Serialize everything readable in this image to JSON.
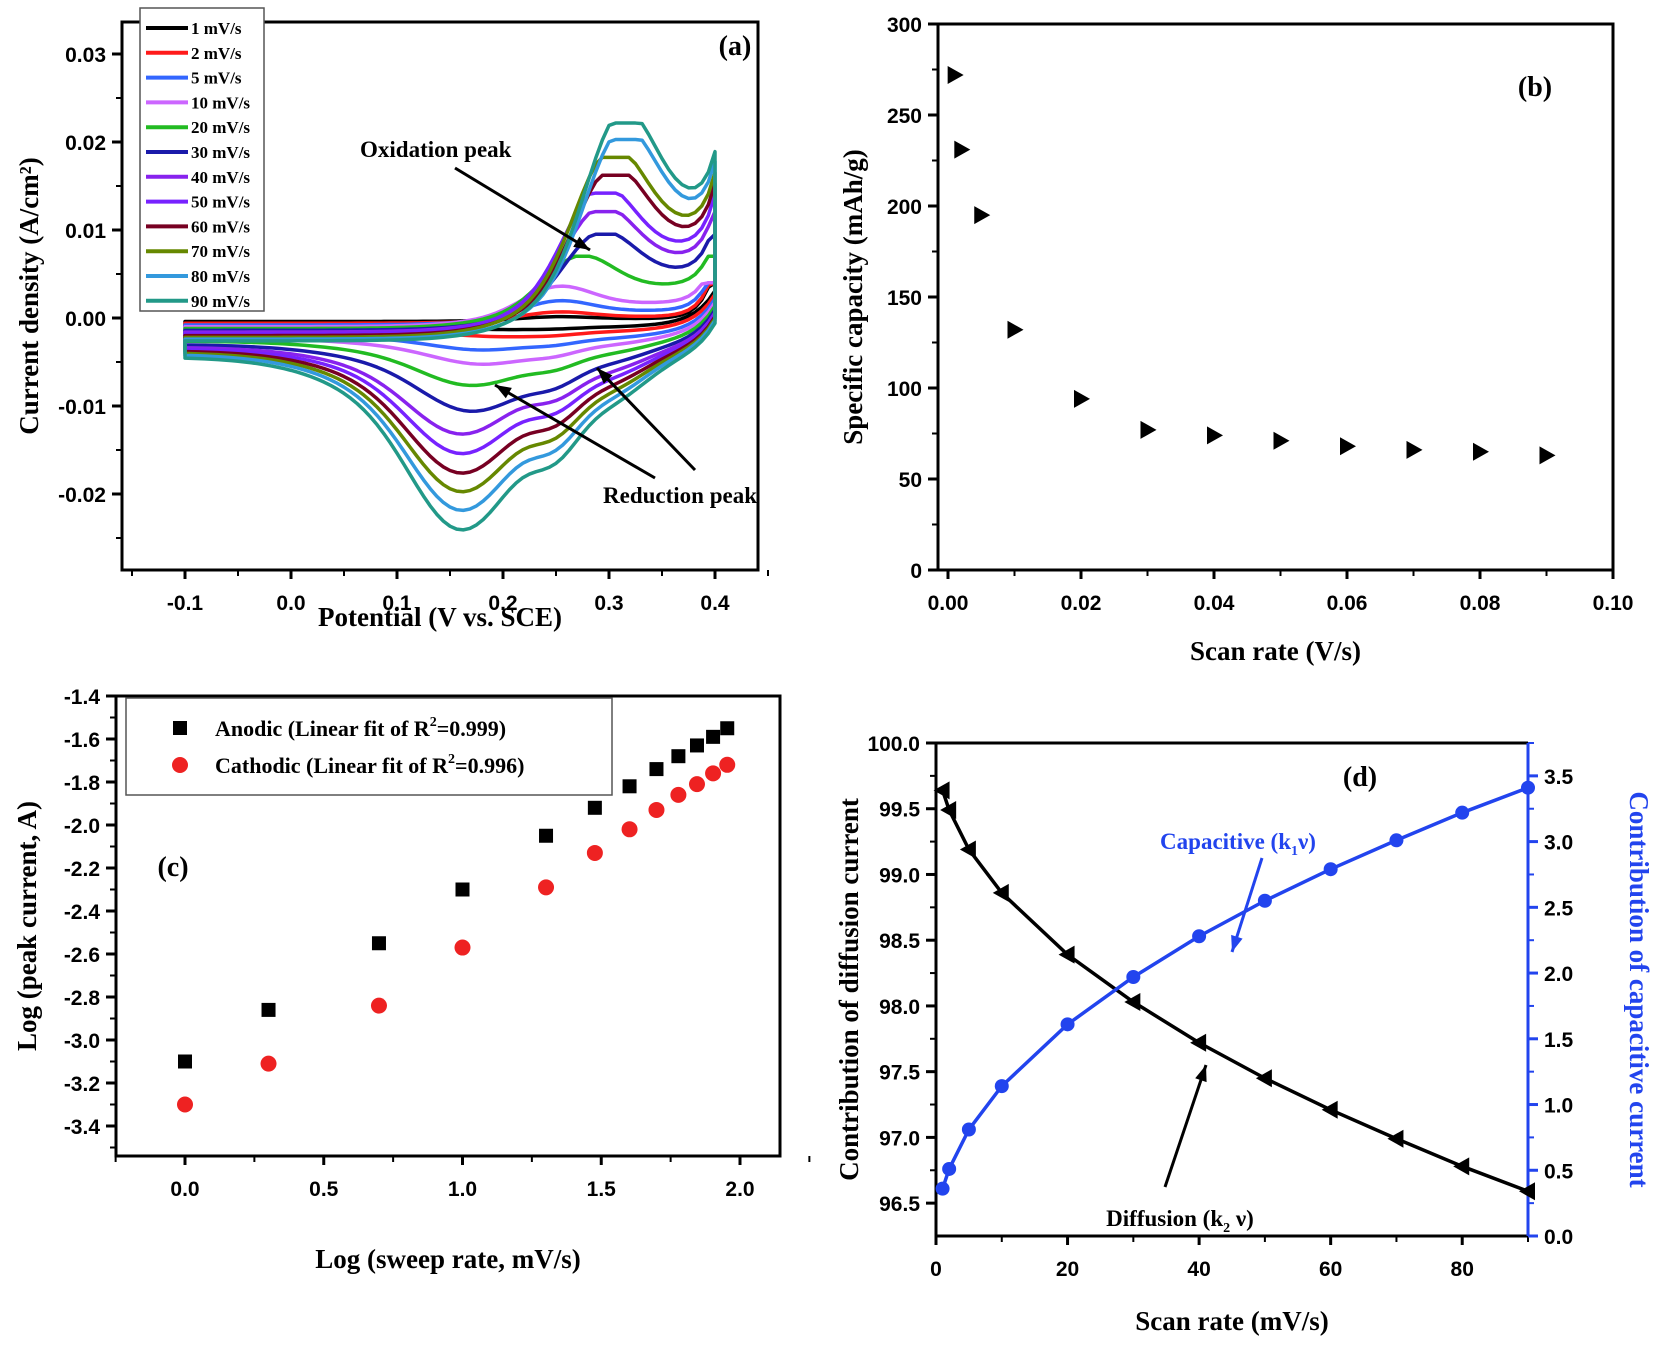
{
  "chart_data": [
    {
      "id": "a",
      "type": "line",
      "panel_label": "(a)",
      "title": "",
      "xlabel": "Potential (V vs. SCE)",
      "ylabel": "Current density (A/cm²)",
      "xlim": [
        -0.15,
        0.45
      ],
      "ylim": [
        -0.025,
        0.033
      ],
      "x_ticks": [
        "-0.1",
        "0.0",
        "0.1",
        "0.2",
        "0.3",
        "0.4"
      ],
      "x_tick_values": [
        -0.1,
        0.0,
        0.1,
        0.2,
        0.3,
        0.4
      ],
      "y_ticks": [
        "-0.02",
        "-0.01",
        "0.00",
        "0.01",
        "0.02",
        "0.03"
      ],
      "y_tick_values": [
        -0.02,
        -0.01,
        0.0,
        0.01,
        0.02,
        0.03
      ],
      "legend_position": "top-left",
      "annotations": [
        "Oxidation peak",
        "Reduction peak"
      ],
      "series": [
        {
          "name": "1 mV/s",
          "color": "#000000",
          "anodic_peak": [
            0.25,
            0.0006
          ],
          "cathodic_peak": [
            0.2,
            -0.0004
          ],
          "start_low": -0.0009,
          "start_high": -0.0004
        },
        {
          "name": "2 mV/s",
          "color": "#ff1a1a",
          "anodic_peak": [
            0.25,
            0.0014
          ],
          "cathodic_peak": [
            0.2,
            -0.0008
          ],
          "start_low": -0.0013,
          "start_high": -0.0006
        },
        {
          "name": "5 mV/s",
          "color": "#3366ff",
          "anodic_peak": [
            0.25,
            0.003
          ],
          "cathodic_peak": [
            0.18,
            -0.0018
          ],
          "start_low": -0.0018,
          "start_high": -0.0008
        },
        {
          "name": "10 mV/s",
          "color": "#cc66ff",
          "anodic_peak": [
            0.25,
            0.005
          ],
          "cathodic_peak": [
            0.18,
            -0.003
          ],
          "start_low": -0.0022,
          "start_high": -0.001
        },
        {
          "name": "20 mV/s",
          "color": "#22bb22",
          "anodic_peak": [
            0.27,
            0.009
          ],
          "cathodic_peak": [
            0.17,
            -0.005
          ],
          "start_low": -0.0026,
          "start_high": -0.0012
        },
        {
          "name": "30 mV/s",
          "color": "#1a1aaa",
          "anodic_peak": [
            0.29,
            0.0122
          ],
          "cathodic_peak": [
            0.17,
            -0.0075
          ],
          "start_low": -0.003,
          "start_high": -0.0014
        },
        {
          "name": "40 mV/s",
          "color": "#8822ee",
          "anodic_peak": [
            0.29,
            0.0155
          ],
          "cathodic_peak": [
            0.16,
            -0.0098
          ],
          "start_low": -0.0033,
          "start_high": -0.0016
        },
        {
          "name": "50 mV/s",
          "color": "#7722ff",
          "anodic_peak": [
            0.29,
            0.0182
          ],
          "cathodic_peak": [
            0.16,
            -0.0118
          ],
          "start_low": -0.0035,
          "start_high": -0.0018
        },
        {
          "name": "60 mV/s",
          "color": "#770022",
          "anodic_peak": [
            0.3,
            0.0208
          ],
          "cathodic_peak": [
            0.16,
            -0.0138
          ],
          "start_low": -0.0037,
          "start_high": -0.002
        },
        {
          "name": "70 mV/s",
          "color": "#668800",
          "anodic_peak": [
            0.3,
            0.0234
          ],
          "cathodic_peak": [
            0.16,
            -0.0157
          ],
          "start_low": -0.0039,
          "start_high": -0.0022
        },
        {
          "name": "80 mV/s",
          "color": "#3399dd",
          "anodic_peak": [
            0.31,
            0.026
          ],
          "cathodic_peak": [
            0.16,
            -0.0176
          ],
          "start_low": -0.0041,
          "start_high": -0.0024
        },
        {
          "name": "90 mV/s",
          "color": "#229988",
          "anodic_peak": [
            0.31,
            0.0284
          ],
          "cathodic_peak": [
            0.16,
            -0.0195
          ],
          "start_low": -0.0044,
          "start_high": -0.0026
        }
      ]
    },
    {
      "id": "b",
      "type": "scatter",
      "panel_label": "(b)",
      "title": "",
      "xlabel": "Scan rate (V/s)",
      "ylabel": "Specific capacity (mAh/g)",
      "xlim": [
        -0.004,
        0.1
      ],
      "ylim": [
        0,
        300
      ],
      "x_ticks": [
        "0.00",
        "0.02",
        "0.04",
        "0.06",
        "0.08",
        "0.10"
      ],
      "x_tick_values": [
        0.0,
        0.02,
        0.04,
        0.06,
        0.08,
        0.1
      ],
      "y_ticks": [
        "0",
        "50",
        "100",
        "150",
        "200",
        "250",
        "300"
      ],
      "y_tick_values": [
        0,
        50,
        100,
        150,
        200,
        250,
        300
      ],
      "marker": "right-triangle",
      "x": [
        0.001,
        0.002,
        0.005,
        0.01,
        0.02,
        0.03,
        0.04,
        0.05,
        0.06,
        0.07,
        0.08,
        0.09
      ],
      "values": [
        272,
        231,
        195,
        132,
        94,
        77,
        74,
        71,
        68,
        66,
        65,
        63
      ]
    },
    {
      "id": "c",
      "type": "scatter",
      "panel_label": "(c)",
      "title": "",
      "xlabel": "Log (sweep rate, mV/s)",
      "ylabel": "Log (peak current, A)",
      "xlim": [
        -0.25,
        2.25
      ],
      "ylim": [
        -3.5,
        -1.4
      ],
      "x_ticks": [
        "0.0",
        "0.5",
        "1.0",
        "1.5",
        "2.0"
      ],
      "x_tick_values": [
        0.0,
        0.5,
        1.0,
        1.5,
        2.0
      ],
      "y_ticks": [
        "-3.4",
        "-3.2",
        "-3.0",
        "-2.8",
        "-2.6",
        "-2.4",
        "-2.2",
        "-2.0",
        "-1.8",
        "-1.6",
        "-1.4"
      ],
      "y_tick_values": [
        -3.4,
        -3.2,
        -3.0,
        -2.8,
        -2.6,
        -2.4,
        -2.2,
        -2.0,
        -1.8,
        -1.6,
        -1.4
      ],
      "legend_position": "top-left",
      "x": [
        0.0,
        0.301,
        0.699,
        1.0,
        1.301,
        1.477,
        1.602,
        1.699,
        1.778,
        1.845,
        1.903,
        1.954
      ],
      "series": [
        {
          "name": "Anodic (Linear fit of R²=0.999)",
          "legend_main": "Anodic (Linear fit of R",
          "legend_sup": "2",
          "legend_tail": "=0.999)",
          "marker": "square",
          "color": "#000000",
          "values": [
            -3.1,
            -2.86,
            -2.55,
            -2.3,
            -2.05,
            -1.92,
            -1.82,
            -1.74,
            -1.68,
            -1.63,
            -1.59,
            -1.55
          ]
        },
        {
          "name": "Cathodic (Linear fit of R²=0.996)",
          "legend_main": "Cathodic (Linear fit of R",
          "legend_sup": "2",
          "legend_tail": "=0.996)",
          "marker": "circle",
          "color": "#ee2222",
          "values": [
            -3.3,
            -3.11,
            -2.84,
            -2.57,
            -2.29,
            -2.13,
            -2.02,
            -1.93,
            -1.86,
            -1.81,
            -1.76,
            -1.72
          ]
        }
      ]
    },
    {
      "id": "d",
      "type": "line",
      "panel_label": "(d)",
      "title": "",
      "xlabel": "Scan rate (mV/s)",
      "ylabel": "Contribution of diffusion current",
      "ylabel_right": "Contribution of capacitive current",
      "xlim": [
        0,
        90
      ],
      "ylim": [
        96.25,
        100.0
      ],
      "ylim_right": [
        0.0,
        3.75
      ],
      "x_ticks": [
        "0",
        "20",
        "40",
        "60",
        "80"
      ],
      "x_tick_values": [
        0,
        20,
        40,
        60,
        80
      ],
      "y_ticks": [
        "96.5",
        "97.0",
        "97.5",
        "98.0",
        "98.5",
        "99.0",
        "99.5",
        "100.0"
      ],
      "y_tick_values": [
        96.5,
        97.0,
        97.5,
        98.0,
        98.5,
        99.0,
        99.5,
        100.0
      ],
      "y_ticks_right": [
        "0.0",
        "0.5",
        "1.0",
        "1.5",
        "2.0",
        "2.5",
        "3.0",
        "3.5"
      ],
      "y_tick_values_right": [
        0.0,
        0.5,
        1.0,
        1.5,
        2.0,
        2.5,
        3.0,
        3.5
      ],
      "x": [
        1,
        2,
        5,
        10,
        20,
        30,
        40,
        50,
        60,
        70,
        80,
        90
      ],
      "series": [
        {
          "name": "Diffusion (k₂ ν)",
          "label_main": "Diffusion (k",
          "label_sub": "2",
          "label_tail": " ν)",
          "axis": "left",
          "marker": "left-triangle",
          "color": "#000000",
          "values": [
            99.64,
            99.49,
            99.19,
            98.86,
            98.39,
            98.03,
            97.72,
            97.45,
            97.21,
            96.99,
            96.78,
            96.59
          ]
        },
        {
          "name": "Capacitive (k₁ ν)",
          "label_main": "Capacitive (k",
          "label_sub": "1",
          "label_tail": "ν)",
          "axis": "right",
          "marker": "circle",
          "color": "#2244ee",
          "values": [
            0.36,
            0.51,
            0.81,
            1.14,
            1.61,
            1.97,
            2.28,
            2.55,
            2.79,
            3.01,
            3.22,
            3.41
          ]
        }
      ]
    }
  ]
}
